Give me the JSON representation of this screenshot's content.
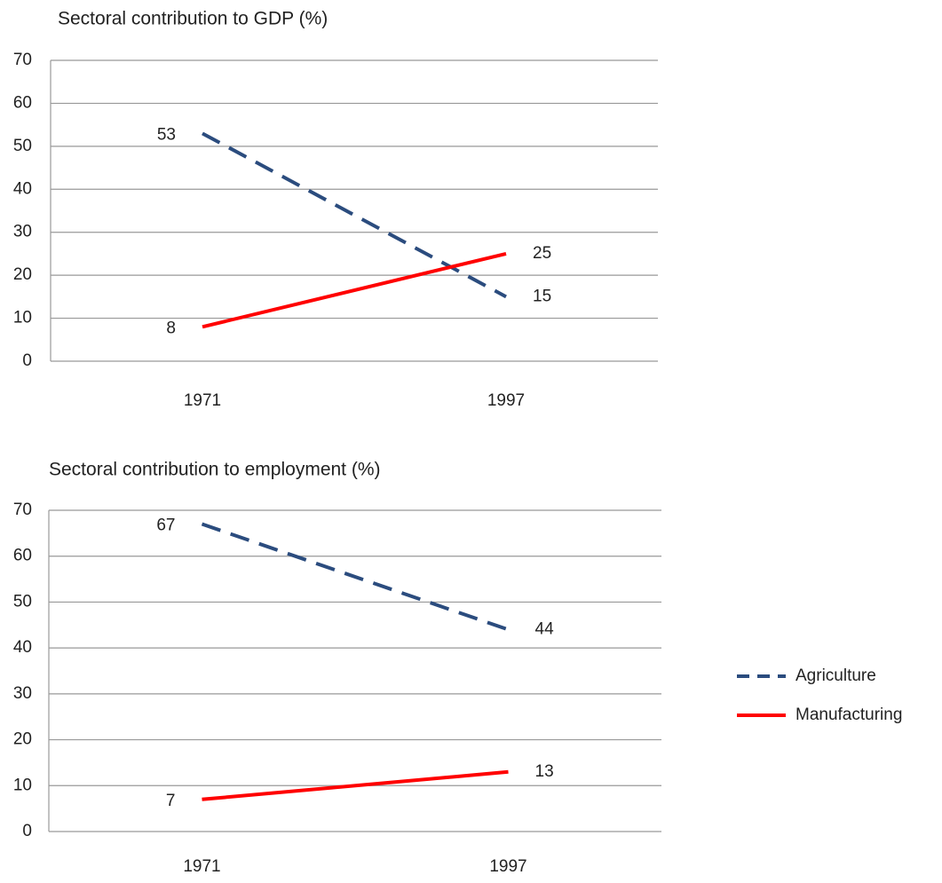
{
  "chart_data": [
    {
      "type": "line",
      "title": "Sectoral contribution to GDP (%)",
      "categories": [
        "1971",
        "1997"
      ],
      "series": [
        {
          "color": "#2b4c7e",
          "dashed": true,
          "values": [
            53,
            15
          ]
        },
        {
          "color": "#ff0000",
          "dashed": false,
          "values": [
            8,
            25
          ]
        }
      ],
      "ylim": [
        0,
        70
      ],
      "yticks": [
        0,
        10,
        20,
        30,
        40,
        50,
        60,
        70
      ],
      "grid": true
    },
    {
      "type": "line",
      "title": "Sectoral contribution to employment (%)",
      "categories": [
        "1971",
        "1997"
      ],
      "series": [
        {
          "name": "Agriculture",
          "color": "#2b4c7e",
          "dashed": true,
          "values": [
            67,
            44
          ]
        },
        {
          "name": "Manufacturing",
          "color": "#ff0000",
          "dashed": false,
          "values": [
            7,
            13
          ]
        }
      ],
      "ylim": [
        0,
        70
      ],
      "yticks": [
        0,
        10,
        20,
        30,
        40,
        50,
        60,
        70
      ],
      "grid": true,
      "legend": "right"
    }
  ]
}
